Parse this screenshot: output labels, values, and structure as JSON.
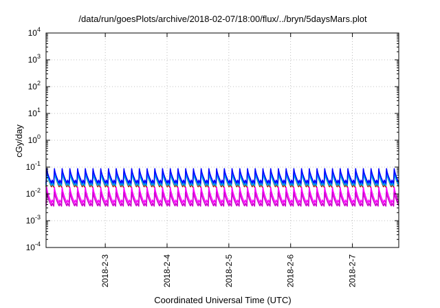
{
  "chart_data": {
    "type": "line",
    "title": "/data/run/goesPlots/archive/2018-02-07/18:00/flux/../bryn/5daysMars.plot",
    "xlabel": "Coordinated Universal Time (UTC)",
    "ylabel": "cGy/day",
    "y_scale": "log",
    "ylim": [
      0.0001,
      10000
    ],
    "xlim": [
      "2018-02-02 01:00",
      "2018-02-07 18:00"
    ],
    "grid": true,
    "y_ticks": [
      {
        "base": "10",
        "exp": "-4"
      },
      {
        "base": "10",
        "exp": "-3"
      },
      {
        "base": "10",
        "exp": "-2"
      },
      {
        "base": "10",
        "exp": "-1"
      },
      {
        "base": "10",
        "exp": "0"
      },
      {
        "base": "10",
        "exp": "1"
      },
      {
        "base": "10",
        "exp": "2"
      },
      {
        "base": "10",
        "exp": "3"
      },
      {
        "base": "10",
        "exp": "4"
      }
    ],
    "x_ticks": [
      "2018-2-3",
      "2018-2-4",
      "2018-2-5",
      "2018-2-6",
      "2018-2-7"
    ],
    "x_tick_values": [
      "2018-02-03",
      "2018-02-04",
      "2018-02-05",
      "2018-02-06",
      "2018-02-07"
    ],
    "cycle_hours": 3,
    "series": [
      {
        "color": "#0000ff",
        "peak": 0.09,
        "trough": 0.025,
        "bump": 0.008
      },
      {
        "color": "#c00000",
        "peak": 0.07,
        "trough": 0.018,
        "bump": 0.005
      },
      {
        "color": "#00c8c8",
        "peak": 0.06,
        "trough": 0.02,
        "bump": 0.006
      },
      {
        "color": "#0080ff",
        "peak": 0.075,
        "trough": 0.022,
        "bump": 0.007
      },
      {
        "color": "#ff00ff",
        "peak": 0.018,
        "trough": 0.0045,
        "bump": 0.0015
      },
      {
        "color": "#cc00cc",
        "peak": 0.012,
        "trough": 0.0035,
        "bump": 0.001
      }
    ]
  }
}
